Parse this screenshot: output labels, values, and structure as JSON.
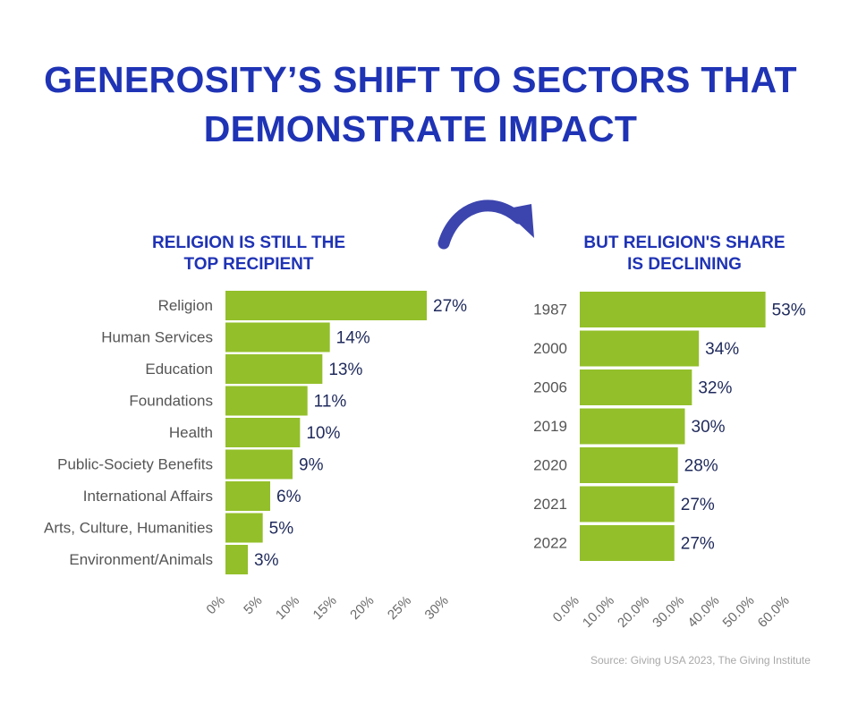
{
  "title": {
    "line1": "GENEROSITY’S SHIFT TO SECTORS THAT",
    "line2": "DEMONSTRATE IMPACT"
  },
  "source": "Source: Giving USA 2023, The Giving Institute",
  "colors": {
    "title": "#1f33b5",
    "bar": "#93bf2a",
    "arrow": "#3c45ae",
    "value_text": "#1f2a5c",
    "label_text": "#555555"
  },
  "chart_data": [
    {
      "type": "bar",
      "orientation": "horizontal",
      "title_lines": [
        "RELIGION IS STILL THE",
        "TOP RECIPIENT"
      ],
      "categories": [
        "Religion",
        "Human Services",
        "Education",
        "Foundations",
        "Health",
        "Public-Society Benefits",
        "International Affairs",
        "Arts, Culture, Humanities",
        "Environment/Animals"
      ],
      "values": [
        27,
        14,
        13,
        11,
        10,
        9,
        6,
        5,
        3
      ],
      "value_labels": [
        "27%",
        "14%",
        "13%",
        "11%",
        "10%",
        "9%",
        "6%",
        "5%",
        "3%"
      ],
      "xlim": [
        0,
        30
      ],
      "xticks": [
        0,
        5,
        10,
        15,
        20,
        25,
        30
      ],
      "xtick_labels": [
        "0%",
        "5%",
        "10%",
        "15%",
        "20%",
        "25%",
        "30%"
      ],
      "grid": false
    },
    {
      "type": "bar",
      "orientation": "horizontal",
      "title_lines": [
        "BUT RELIGION'S SHARE",
        "IS DECLINING"
      ],
      "categories": [
        "1987",
        "2000",
        "2006",
        "2019",
        "2020",
        "2021",
        "2022"
      ],
      "values": [
        53,
        34,
        32,
        30,
        28,
        27,
        27
      ],
      "value_labels": [
        "53%",
        "34%",
        "32%",
        "30%",
        "28%",
        "27%",
        "27%"
      ],
      "xlim": [
        0,
        60
      ],
      "xticks": [
        0,
        10,
        20,
        30,
        40,
        50,
        60
      ],
      "xtick_labels": [
        "0.0%",
        "10.0%",
        "20.0%",
        "30.0%",
        "40.0%",
        "50.0%",
        "60.0%"
      ],
      "grid": false
    }
  ]
}
